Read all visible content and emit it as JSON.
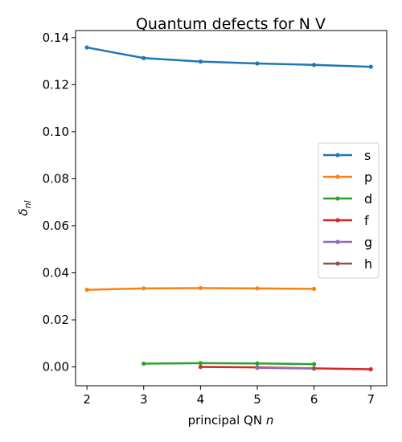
{
  "chart_data": {
    "type": "line",
    "title": "Quantum defects for N V",
    "xlabel": "principal QN",
    "xlabel_var": "n",
    "ylabel": "δ",
    "ylabel_sub": "nl",
    "xlim": [
      1.8,
      7.28
    ],
    "ylim": [
      -0.008,
      0.143
    ],
    "xticks": [
      2,
      3,
      4,
      5,
      6,
      7
    ],
    "yticks": [
      "0.00",
      "0.02",
      "0.04",
      "0.06",
      "0.08",
      "0.10",
      "0.12",
      "0.14"
    ],
    "ytick_values": [
      0.0,
      0.02,
      0.04,
      0.06,
      0.08,
      0.1,
      0.12,
      0.14
    ],
    "grid": false,
    "legend_position": "center-right",
    "series": [
      {
        "name": "s",
        "color": "#1f77b4",
        "x": [
          2,
          3,
          4,
          5,
          6,
          7
        ],
        "y": [
          0.1358,
          0.1313,
          0.1298,
          0.129,
          0.1284,
          0.1276
        ]
      },
      {
        "name": "p",
        "color": "#ff7f0e",
        "x": [
          2,
          3,
          4,
          5,
          6
        ],
        "y": [
          0.0328,
          0.0334,
          0.0335,
          0.0334,
          0.0332
        ]
      },
      {
        "name": "d",
        "color": "#2ca02c",
        "x": [
          3,
          4,
          5,
          6
        ],
        "y": [
          0.0014,
          0.0016,
          0.0015,
          0.0012
        ]
      },
      {
        "name": "f",
        "color": "#d62728",
        "x": [
          4,
          5,
          6,
          7
        ],
        "y": [
          0.0,
          -0.0002,
          -0.0006,
          -0.001
        ]
      },
      {
        "name": "g",
        "color": "#9467bd",
        "x": [
          5,
          6
        ],
        "y": [
          -0.0004,
          -0.0007
        ]
      },
      {
        "name": "h",
        "color": "#8c564b",
        "x": [
          6
        ],
        "y": [
          -0.0007
        ]
      }
    ]
  }
}
